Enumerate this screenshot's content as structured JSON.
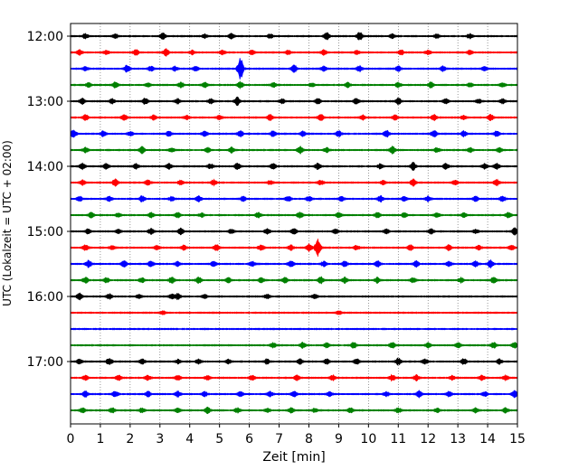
{
  "chart_data": {
    "type": "line",
    "title": "",
    "xlabel": "Zeit  [min]",
    "ylabel": "UTC (Lokalzeit = UTC + 02:00)",
    "xlim": [
      0,
      15
    ],
    "x_ticks": [
      "0",
      "1",
      "2",
      "3",
      "4",
      "5",
      "6",
      "7",
      "8",
      "9",
      "10",
      "11",
      "12",
      "13",
      "14",
      "15"
    ],
    "y_ticks": [
      "12:00",
      "13:00",
      "14:00",
      "15:00",
      "16:00",
      "17:00"
    ],
    "trace_interval_min": 15,
    "grid": "vertical-dotted",
    "series_colors": [
      "#000000",
      "#ff0000",
      "#0000ff",
      "#008000"
    ],
    "traces": [
      {
        "start": "12:00",
        "color": "#000000",
        "events": [
          [
            0.5,
            0.6
          ],
          [
            1.5,
            0.5
          ],
          [
            3.1,
            0.8
          ],
          [
            4.5,
            0.5
          ],
          [
            5.4,
            0.6
          ],
          [
            6.7,
            0.5
          ],
          [
            8.6,
            0.9
          ],
          [
            9.7,
            1.0
          ],
          [
            10.8,
            0.5
          ],
          [
            12.3,
            0.5
          ],
          [
            13.4,
            0.6
          ]
        ]
      },
      {
        "start": "12:15",
        "color": "#ff0000",
        "events": [
          [
            0.3,
            0.6
          ],
          [
            1.2,
            0.5
          ],
          [
            2.2,
            0.7
          ],
          [
            3.2,
            0.9
          ],
          [
            4.1,
            0.5
          ],
          [
            5.1,
            0.5
          ],
          [
            6.1,
            0.6
          ],
          [
            7.3,
            0.5
          ],
          [
            8.5,
            0.6
          ],
          [
            9.6,
            0.5
          ],
          [
            11.1,
            0.6
          ],
          [
            12.0,
            0.5
          ],
          [
            13.4,
            0.5
          ]
        ]
      },
      {
        "start": "12:30",
        "color": "#0000ff",
        "events": [
          [
            0.5,
            0.5
          ],
          [
            1.9,
            0.9
          ],
          [
            2.7,
            0.6
          ],
          [
            3.5,
            0.6
          ],
          [
            4.2,
            0.5
          ],
          [
            5.7,
            2.8
          ],
          [
            7.5,
            0.9
          ],
          [
            8.5,
            0.6
          ],
          [
            9.7,
            0.7
          ],
          [
            11.0,
            0.6
          ],
          [
            12.5,
            0.6
          ],
          [
            13.9,
            0.5
          ]
        ]
      },
      {
        "start": "12:45",
        "color": "#008000",
        "events": [
          [
            0.6,
            0.5
          ],
          [
            1.5,
            0.7
          ],
          [
            2.6,
            0.5
          ],
          [
            3.7,
            0.7
          ],
          [
            4.5,
            0.6
          ],
          [
            5.7,
            0.8
          ],
          [
            6.8,
            0.6
          ],
          [
            8.1,
            0.5
          ],
          [
            9.3,
            0.6
          ],
          [
            11.0,
            0.6
          ],
          [
            12.1,
            0.7
          ],
          [
            13.4,
            0.5
          ],
          [
            14.5,
            0.5
          ]
        ]
      },
      {
        "start": "13:00",
        "color": "#000000",
        "events": [
          [
            0.4,
            0.7
          ],
          [
            1.4,
            0.6
          ],
          [
            2.5,
            0.8
          ],
          [
            3.6,
            0.6
          ],
          [
            4.7,
            0.6
          ],
          [
            5.6,
            1.0
          ],
          [
            7.1,
            0.6
          ],
          [
            8.3,
            0.7
          ],
          [
            9.6,
            0.7
          ],
          [
            11.0,
            0.8
          ],
          [
            12.6,
            0.6
          ],
          [
            13.7,
            0.5
          ],
          [
            14.5,
            0.6
          ]
        ]
      },
      {
        "start": "13:15",
        "color": "#ff0000",
        "events": [
          [
            0.5,
            0.7
          ],
          [
            1.8,
            0.7
          ],
          [
            2.8,
            0.6
          ],
          [
            3.9,
            0.5
          ],
          [
            5.0,
            0.6
          ],
          [
            6.7,
            0.7
          ],
          [
            8.4,
            0.8
          ],
          [
            9.8,
            0.6
          ],
          [
            10.9,
            0.6
          ],
          [
            12.2,
            0.7
          ],
          [
            13.2,
            0.6
          ],
          [
            14.1,
            0.7
          ]
        ]
      },
      {
        "start": "13:30",
        "color": "#0000ff",
        "events": [
          [
            0.1,
            1.0
          ],
          [
            1.1,
            0.7
          ],
          [
            2.0,
            0.6
          ],
          [
            3.3,
            0.6
          ],
          [
            4.5,
            0.8
          ],
          [
            5.7,
            0.7
          ],
          [
            6.8,
            0.7
          ],
          [
            7.8,
            0.6
          ],
          [
            9.0,
            0.7
          ],
          [
            10.6,
            0.9
          ],
          [
            12.2,
            0.8
          ],
          [
            13.2,
            0.7
          ],
          [
            14.3,
            0.7
          ]
        ]
      },
      {
        "start": "13:45",
        "color": "#008000",
        "events": [
          [
            0.5,
            0.6
          ],
          [
            2.4,
            0.8
          ],
          [
            3.4,
            0.6
          ],
          [
            4.6,
            0.6
          ],
          [
            5.4,
            0.7
          ],
          [
            7.7,
            0.9
          ],
          [
            8.6,
            0.6
          ],
          [
            10.8,
            0.9
          ],
          [
            12.3,
            0.6
          ],
          [
            13.4,
            0.6
          ],
          [
            14.4,
            0.6
          ]
        ]
      },
      {
        "start": "14:00",
        "color": "#000000",
        "events": [
          [
            0.4,
            0.8
          ],
          [
            1.2,
            0.7
          ],
          [
            2.2,
            0.6
          ],
          [
            3.3,
            0.7
          ],
          [
            4.7,
            0.6
          ],
          [
            5.6,
            0.8
          ],
          [
            6.8,
            0.7
          ],
          [
            8.3,
            0.7
          ],
          [
            10.4,
            0.6
          ],
          [
            11.5,
            0.9
          ],
          [
            12.6,
            0.8
          ],
          [
            13.9,
            0.6
          ],
          [
            14.3,
            0.7
          ]
        ]
      },
      {
        "start": "14:15",
        "color": "#ff0000",
        "events": [
          [
            0.4,
            0.6
          ],
          [
            1.5,
            0.9
          ],
          [
            2.6,
            0.6
          ],
          [
            3.7,
            0.6
          ],
          [
            4.8,
            0.7
          ],
          [
            6.7,
            0.5
          ],
          [
            8.4,
            0.6
          ],
          [
            10.5,
            0.5
          ],
          [
            11.5,
            0.9
          ],
          [
            12.9,
            0.6
          ],
          [
            14.3,
            0.8
          ]
        ]
      },
      {
        "start": "14:30",
        "color": "#0000ff",
        "events": [
          [
            0.3,
            0.6
          ],
          [
            1.3,
            0.6
          ],
          [
            2.4,
            0.7
          ],
          [
            3.4,
            0.6
          ],
          [
            4.3,
            0.7
          ],
          [
            5.8,
            0.6
          ],
          [
            7.3,
            0.7
          ],
          [
            8.0,
            0.6
          ],
          [
            9.1,
            0.6
          ],
          [
            10.4,
            0.8
          ],
          [
            11.2,
            0.6
          ],
          [
            12.0,
            0.7
          ],
          [
            13.6,
            0.6
          ],
          [
            14.5,
            0.7
          ]
        ]
      },
      {
        "start": "14:45",
        "color": "#008000",
        "events": [
          [
            0.7,
            0.7
          ],
          [
            1.6,
            0.5
          ],
          [
            2.7,
            0.6
          ],
          [
            3.6,
            0.6
          ],
          [
            4.4,
            0.5
          ],
          [
            6.3,
            0.6
          ],
          [
            7.7,
            0.7
          ],
          [
            9.0,
            0.7
          ],
          [
            10.3,
            0.6
          ],
          [
            11.2,
            0.6
          ],
          [
            12.3,
            0.6
          ],
          [
            13.2,
            0.5
          ],
          [
            14.7,
            0.7
          ]
        ]
      },
      {
        "start": "15:00",
        "color": "#000000",
        "events": [
          [
            0.6,
            0.6
          ],
          [
            1.6,
            0.5
          ],
          [
            2.7,
            0.7
          ],
          [
            3.7,
            0.8
          ],
          [
            5.4,
            0.5
          ],
          [
            6.6,
            0.6
          ],
          [
            7.5,
            0.7
          ],
          [
            8.9,
            0.6
          ],
          [
            10.6,
            0.6
          ],
          [
            12.1,
            0.6
          ],
          [
            13.6,
            0.5
          ],
          [
            14.9,
            0.9
          ]
        ]
      },
      {
        "start": "15:15",
        "color": "#ff0000",
        "events": [
          [
            0.5,
            0.7
          ],
          [
            1.4,
            0.5
          ],
          [
            2.9,
            0.6
          ],
          [
            3.8,
            0.6
          ],
          [
            4.9,
            0.7
          ],
          [
            6.4,
            0.8
          ],
          [
            7.4,
            0.6
          ],
          [
            8.0,
            0.9
          ],
          [
            8.3,
            2.2
          ],
          [
            9.6,
            0.6
          ],
          [
            11.4,
            0.7
          ],
          [
            12.7,
            0.7
          ],
          [
            13.7,
            0.5
          ],
          [
            14.8,
            0.7
          ]
        ]
      },
      {
        "start": "15:30",
        "color": "#0000ff",
        "events": [
          [
            0.6,
            0.9
          ],
          [
            1.8,
            0.8
          ],
          [
            2.7,
            0.7
          ],
          [
            3.6,
            0.6
          ],
          [
            4.8,
            0.6
          ],
          [
            6.1,
            0.6
          ],
          [
            7.4,
            0.8
          ],
          [
            8.5,
            0.6
          ],
          [
            9.2,
            0.7
          ],
          [
            10.3,
            0.8
          ],
          [
            11.6,
            0.7
          ],
          [
            12.7,
            0.6
          ],
          [
            13.6,
            0.7
          ],
          [
            14.1,
            1.0
          ]
        ]
      },
      {
        "start": "15:45",
        "color": "#008000",
        "events": [
          [
            0.5,
            0.7
          ],
          [
            1.2,
            0.6
          ],
          [
            2.4,
            0.6
          ],
          [
            3.4,
            0.8
          ],
          [
            4.3,
            0.7
          ],
          [
            5.3,
            0.6
          ],
          [
            6.4,
            0.6
          ],
          [
            7.2,
            0.6
          ],
          [
            8.4,
            0.8
          ],
          [
            9.2,
            0.7
          ],
          [
            10.3,
            0.7
          ],
          [
            11.5,
            0.6
          ],
          [
            13.1,
            0.6
          ],
          [
            14.2,
            0.7
          ]
        ]
      },
      {
        "start": "16:00",
        "color": "#000000",
        "events": [
          [
            0.3,
            0.8
          ],
          [
            1.3,
            0.6
          ],
          [
            2.3,
            0.5
          ],
          [
            3.4,
            0.6
          ],
          [
            3.6,
            0.7
          ],
          [
            4.5,
            0.5
          ],
          [
            6.6,
            0.5
          ],
          [
            8.2,
            0.5
          ]
        ]
      },
      {
        "start": "16:15",
        "color": "#ff0000",
        "events": [
          [
            3.1,
            0.4
          ],
          [
            9.0,
            0.5
          ]
        ]
      },
      {
        "start": "16:30",
        "color": "#0000ff",
        "events": []
      },
      {
        "start": "16:45",
        "color": "#008000",
        "events": [
          [
            6.8,
            0.6
          ],
          [
            7.8,
            0.7
          ],
          [
            8.6,
            0.6
          ],
          [
            9.5,
            0.7
          ],
          [
            10.8,
            0.7
          ],
          [
            12.0,
            0.6
          ],
          [
            13.0,
            0.6
          ],
          [
            14.2,
            0.7
          ],
          [
            14.9,
            0.7
          ]
        ]
      },
      {
        "start": "17:00",
        "color": "#000000",
        "events": [
          [
            0.3,
            0.6
          ],
          [
            1.3,
            0.9
          ],
          [
            2.4,
            0.6
          ],
          [
            3.6,
            0.5
          ],
          [
            4.3,
            0.6
          ],
          [
            5.3,
            0.5
          ],
          [
            6.6,
            0.6
          ],
          [
            7.7,
            0.6
          ],
          [
            8.6,
            0.6
          ],
          [
            9.6,
            0.7
          ],
          [
            11.0,
            0.8
          ],
          [
            11.9,
            0.6
          ],
          [
            13.2,
            0.7
          ],
          [
            14.4,
            0.6
          ]
        ]
      },
      {
        "start": "17:15",
        "color": "#ff0000",
        "events": [
          [
            0.5,
            0.6
          ],
          [
            1.6,
            0.7
          ],
          [
            2.6,
            0.6
          ],
          [
            3.6,
            0.6
          ],
          [
            4.6,
            0.5
          ],
          [
            6.1,
            0.6
          ],
          [
            7.6,
            0.6
          ],
          [
            8.8,
            0.6
          ],
          [
            10.8,
            0.8
          ],
          [
            11.6,
            0.7
          ],
          [
            12.8,
            0.5
          ],
          [
            13.8,
            0.6
          ],
          [
            14.6,
            0.6
          ]
        ]
      },
      {
        "start": "17:30",
        "color": "#0000ff",
        "events": [
          [
            0.5,
            0.7
          ],
          [
            1.5,
            0.8
          ],
          [
            2.6,
            0.6
          ],
          [
            3.6,
            0.7
          ],
          [
            4.5,
            0.6
          ],
          [
            5.7,
            0.6
          ],
          [
            6.7,
            0.6
          ],
          [
            7.5,
            0.7
          ],
          [
            8.7,
            0.6
          ],
          [
            10.6,
            0.6
          ],
          [
            11.7,
            0.8
          ],
          [
            12.7,
            0.6
          ],
          [
            13.9,
            0.6
          ],
          [
            14.9,
            0.8
          ]
        ]
      },
      {
        "start": "17:45",
        "color": "#008000",
        "events": [
          [
            0.4,
            0.6
          ],
          [
            1.4,
            0.6
          ],
          [
            2.4,
            0.6
          ],
          [
            3.6,
            0.5
          ],
          [
            4.6,
            0.7
          ],
          [
            5.6,
            0.6
          ],
          [
            6.6,
            0.5
          ],
          [
            7.4,
            0.6
          ],
          [
            8.2,
            0.5
          ],
          [
            9.4,
            0.6
          ],
          [
            11.0,
            0.6
          ],
          [
            12.3,
            0.5
          ],
          [
            13.6,
            0.6
          ],
          [
            14.6,
            0.6
          ]
        ]
      }
    ]
  }
}
